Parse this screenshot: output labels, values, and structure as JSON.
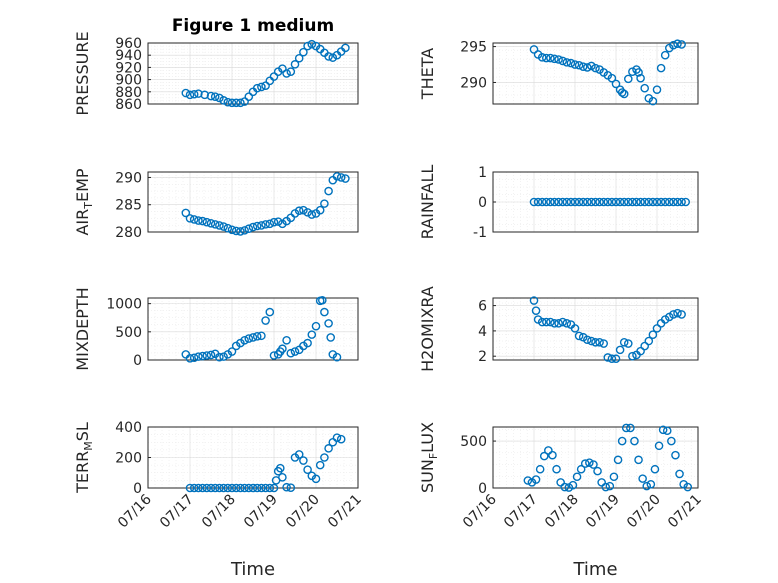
{
  "colors": {
    "marker": "#0072bd",
    "axis": "#262626",
    "grid": "#d9d9d9"
  },
  "chart_data": [
    {
      "type": "scatter",
      "title": "Figure 1 medium",
      "ylabel": "PRESSURE",
      "ylim": [
        860,
        960
      ],
      "yticks": [
        "860",
        "880",
        "900",
        "920",
        "940",
        "960"
      ],
      "ytickvals": [
        860,
        880,
        900,
        920,
        940,
        960
      ],
      "xlabel": "",
      "xticks": [],
      "grid": true,
      "x": [
        16.9,
        17.0,
        17.1,
        17.2,
        17.35,
        17.5,
        17.6,
        17.7,
        17.8,
        17.9,
        18.0,
        18.1,
        18.2,
        18.3,
        18.4,
        18.5,
        18.6,
        18.7,
        18.8,
        18.9,
        19.0,
        19.1,
        19.2,
        19.3,
        19.4,
        19.5,
        19.6,
        19.7,
        19.8,
        19.9,
        20.0,
        20.1,
        20.2,
        20.3,
        20.4,
        20.5,
        20.6,
        20.7
      ],
      "y": [
        878,
        875,
        876,
        877,
        875,
        873,
        872,
        870,
        866,
        863,
        862,
        862,
        862,
        864,
        872,
        880,
        886,
        888,
        890,
        898,
        905,
        913,
        918,
        910,
        913,
        925,
        935,
        945,
        955,
        958,
        955,
        950,
        944,
        938,
        936,
        940,
        946,
        952
      ]
    },
    {
      "type": "scatter",
      "ylabel": "THETA",
      "ylim": [
        287,
        295.5
      ],
      "yticks": [
        "290",
        "295"
      ],
      "ytickvals": [
        290,
        295
      ],
      "xlabel": "",
      "xticks": [],
      "grid": true,
      "x": [
        17.0,
        17.1,
        17.2,
        17.3,
        17.4,
        17.5,
        17.6,
        17.7,
        17.8,
        17.9,
        18.0,
        18.1,
        18.2,
        18.3,
        18.4,
        18.5,
        18.6,
        18.7,
        18.8,
        18.9,
        19.0,
        19.1,
        19.15,
        19.2,
        19.3,
        19.4,
        19.5,
        19.55,
        19.6,
        19.7,
        19.8,
        19.9,
        20.0,
        20.1,
        20.2,
        20.3,
        20.4,
        20.5,
        20.6
      ],
      "y": [
        294.6,
        293.9,
        293.5,
        293.4,
        293.4,
        293.3,
        293.2,
        293.0,
        292.8,
        292.7,
        292.5,
        292.4,
        292.2,
        292.1,
        292.3,
        292.0,
        291.8,
        291.4,
        291.0,
        290.6,
        289.8,
        289.0,
        288.6,
        288.4,
        290.5,
        291.5,
        291.8,
        291.4,
        290.6,
        289.2,
        287.8,
        287.4,
        289.0,
        292.0,
        293.8,
        294.8,
        295.2,
        295.4,
        295.3
      ]
    },
    {
      "type": "scatter",
      "ylabel": "AIR_TEMP",
      "ylim": [
        280,
        291
      ],
      "yticks": [
        "280",
        "285",
        "290"
      ],
      "ytickvals": [
        280,
        285,
        290
      ],
      "xlabel": "",
      "xticks": [],
      "grid": true,
      "x": [
        16.9,
        17.0,
        17.1,
        17.2,
        17.3,
        17.4,
        17.5,
        17.6,
        17.7,
        17.8,
        17.9,
        18.0,
        18.1,
        18.2,
        18.3,
        18.4,
        18.5,
        18.6,
        18.7,
        18.8,
        18.9,
        19.0,
        19.1,
        19.2,
        19.3,
        19.4,
        19.5,
        19.6,
        19.7,
        19.8,
        19.9,
        20.0,
        20.1,
        20.2,
        20.3,
        20.4,
        20.5,
        20.6,
        20.7
      ],
      "y": [
        283.5,
        282.5,
        282.3,
        282.1,
        282.0,
        281.8,
        281.6,
        281.4,
        281.2,
        281.0,
        280.7,
        280.4,
        280.2,
        280.1,
        280.3,
        280.6,
        280.9,
        281.1,
        281.2,
        281.4,
        281.5,
        281.8,
        281.9,
        281.5,
        282.0,
        282.6,
        283.4,
        283.9,
        284.0,
        283.6,
        283.2,
        283.4,
        284.0,
        285.2,
        287.5,
        289.5,
        290.2,
        290.0,
        289.8
      ]
    },
    {
      "type": "scatter",
      "ylabel": "RAINFALL",
      "ylim": [
        -1,
        1
      ],
      "yticks": [
        "-1",
        "0",
        "1"
      ],
      "ytickvals": [
        -1,
        0,
        1
      ],
      "xlabel": "",
      "xticks": [],
      "grid": true,
      "x": [
        17.0,
        17.1,
        17.2,
        17.3,
        17.4,
        17.5,
        17.6,
        17.7,
        17.8,
        17.9,
        18.0,
        18.1,
        18.2,
        18.3,
        18.4,
        18.5,
        18.6,
        18.7,
        18.8,
        18.9,
        19.0,
        19.1,
        19.2,
        19.3,
        19.4,
        19.5,
        19.6,
        19.7,
        19.8,
        19.9,
        20.0,
        20.1,
        20.2,
        20.3,
        20.4,
        20.5,
        20.6,
        20.7
      ],
      "y": [
        0,
        0,
        0,
        0,
        0,
        0,
        0,
        0,
        0,
        0,
        0,
        0,
        0,
        0,
        0,
        0,
        0,
        0,
        0,
        0,
        0,
        0,
        0,
        0,
        0,
        0,
        0,
        0,
        0,
        0,
        0,
        0,
        0,
        0,
        0,
        0,
        0,
        0
      ]
    },
    {
      "type": "scatter",
      "ylabel": "MIXDEPTH",
      "ylim": [
        0,
        1100
      ],
      "yticks": [
        "0",
        "500",
        "1000"
      ],
      "ytickvals": [
        0,
        500,
        1000
      ],
      "xlabel": "",
      "xticks": [],
      "grid": true,
      "x": [
        16.9,
        17.0,
        17.1,
        17.2,
        17.3,
        17.4,
        17.5,
        17.6,
        17.7,
        17.8,
        17.9,
        18.0,
        18.1,
        18.2,
        18.3,
        18.4,
        18.5,
        18.6,
        18.7,
        18.8,
        18.9,
        19.0,
        19.1,
        19.15,
        19.2,
        19.3,
        19.4,
        19.5,
        19.6,
        19.7,
        19.8,
        19.9,
        20.0,
        20.1,
        20.15,
        20.2,
        20.3,
        20.35,
        20.4,
        20.5
      ],
      "y": [
        100,
        30,
        40,
        60,
        70,
        80,
        90,
        110,
        50,
        60,
        100,
        150,
        250,
        300,
        350,
        380,
        400,
        420,
        430,
        700,
        850,
        80,
        100,
        150,
        200,
        350,
        120,
        150,
        180,
        250,
        300,
        450,
        600,
        1050,
        1060,
        850,
        650,
        400,
        100,
        50
      ]
    },
    {
      "type": "scatter",
      "ylabel": "H2OMIXRA",
      "ylim": [
        1.7,
        6.6
      ],
      "yticks": [
        "2",
        "4",
        "6"
      ],
      "ytickvals": [
        2,
        4,
        6
      ],
      "xlabel": "",
      "xticks": [],
      "grid": true,
      "x": [
        17.0,
        17.05,
        17.1,
        17.2,
        17.3,
        17.4,
        17.5,
        17.6,
        17.7,
        17.8,
        17.9,
        18.0,
        18.1,
        18.2,
        18.3,
        18.4,
        18.5,
        18.6,
        18.7,
        18.8,
        18.9,
        19.0,
        19.1,
        19.2,
        19.3,
        19.4,
        19.5,
        19.6,
        19.7,
        19.8,
        19.9,
        20.0,
        20.1,
        20.2,
        20.3,
        20.4,
        20.5,
        20.6
      ],
      "y": [
        6.4,
        5.6,
        4.9,
        4.7,
        4.7,
        4.7,
        4.6,
        4.6,
        4.7,
        4.6,
        4.5,
        4.2,
        3.6,
        3.5,
        3.3,
        3.2,
        3.1,
        3.1,
        3.0,
        1.9,
        1.8,
        1.8,
        2.5,
        3.1,
        3.0,
        2.0,
        2.1,
        2.4,
        2.8,
        3.2,
        3.7,
        4.2,
        4.6,
        4.9,
        5.1,
        5.3,
        5.4,
        5.3
      ]
    },
    {
      "type": "scatter",
      "ylabel": "TERR_MSL",
      "ylim": [
        0,
        400
      ],
      "yticks": [
        "0",
        "200",
        "400"
      ],
      "ytickvals": [
        0,
        200,
        400
      ],
      "xlabel": "Time",
      "xticks": [
        "07/16",
        "07/17",
        "07/18",
        "07/19",
        "07/20",
        "07/21"
      ],
      "xtickvals": [
        16,
        17,
        18,
        19,
        20,
        21
      ],
      "grid": true,
      "x": [
        17.0,
        17.1,
        17.2,
        17.3,
        17.4,
        17.5,
        17.6,
        17.7,
        17.8,
        17.9,
        18.0,
        18.1,
        18.2,
        18.3,
        18.4,
        18.5,
        18.6,
        18.7,
        18.8,
        18.9,
        19.0,
        19.05,
        19.1,
        19.15,
        19.2,
        19.3,
        19.4,
        19.5,
        19.6,
        19.7,
        19.8,
        19.9,
        20.0,
        20.1,
        20.2,
        20.3,
        20.4,
        20.5,
        20.6
      ],
      "y": [
        0,
        0,
        0,
        0,
        0,
        0,
        0,
        0,
        0,
        0,
        0,
        0,
        0,
        0,
        0,
        0,
        0,
        0,
        0,
        0,
        0,
        50,
        110,
        130,
        70,
        5,
        2,
        200,
        220,
        180,
        120,
        80,
        60,
        150,
        200,
        260,
        300,
        330,
        320
      ]
    },
    {
      "type": "scatter",
      "ylabel": "SUN_FLUX",
      "ylim": [
        0,
        650
      ],
      "yticks": [
        "0",
        "500"
      ],
      "ytickvals": [
        0,
        500
      ],
      "xlabel": "Time",
      "xticks": [
        "07/16",
        "07/17",
        "07/18",
        "07/19",
        "07/20",
        "07/21"
      ],
      "xtickvals": [
        16,
        17,
        18,
        19,
        20,
        21
      ],
      "grid": true,
      "x": [
        16.85,
        16.95,
        17.05,
        17.15,
        17.25,
        17.35,
        17.45,
        17.55,
        17.65,
        17.75,
        17.85,
        17.95,
        18.05,
        18.15,
        18.25,
        18.35,
        18.45,
        18.55,
        18.65,
        18.75,
        18.85,
        18.95,
        19.05,
        19.15,
        19.25,
        19.35,
        19.45,
        19.55,
        19.65,
        19.75,
        19.85,
        19.95,
        20.05,
        20.15,
        20.25,
        20.35,
        20.45,
        20.55,
        20.65,
        20.75
      ],
      "y": [
        80,
        60,
        90,
        200,
        340,
        400,
        350,
        200,
        60,
        10,
        5,
        30,
        120,
        200,
        260,
        270,
        250,
        180,
        60,
        10,
        20,
        120,
        300,
        500,
        640,
        640,
        500,
        300,
        100,
        20,
        40,
        200,
        450,
        620,
        610,
        500,
        350,
        150,
        40,
        10
      ]
    }
  ]
}
